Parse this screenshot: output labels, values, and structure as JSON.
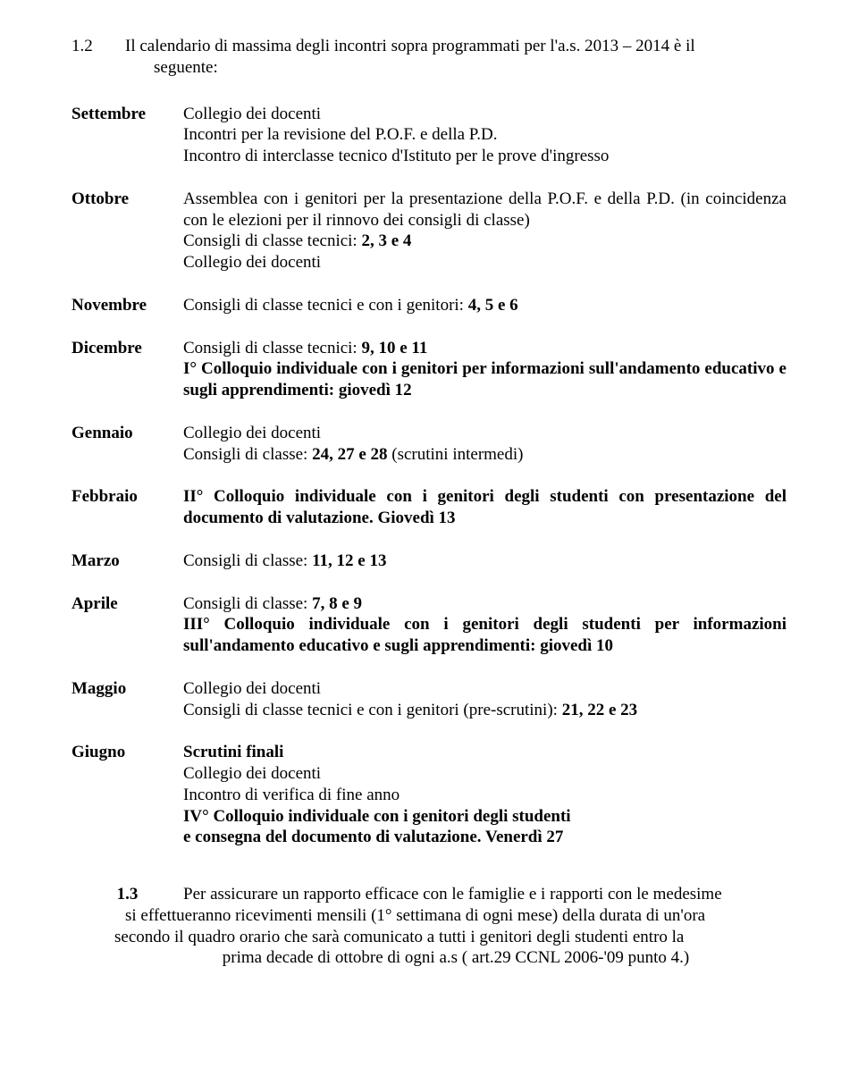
{
  "intro": {
    "num": "1.2",
    "line1": "Il calendario di massima degli incontri sopra programmati per l'a.s. 2013 – 2014 è il",
    "line2": "seguente:"
  },
  "months": {
    "settembre": {
      "label": "Settembre",
      "l1": "Collegio dei docenti",
      "l2": "Incontri per la revisione del P.O.F. e della P.D.",
      "l3": "Incontro di interclasse tecnico d'Istituto per le prove d'ingresso"
    },
    "ottobre": {
      "label": "Ottobre",
      "l1": "Assemblea con i genitori per la presentazione della P.O.F. e della P.D. (in coincidenza con le elezioni per il rinnovo dei consigli di classe)",
      "l2a": "Consigli di classe tecnici: ",
      "l2b": "2, 3 e 4",
      "l3": "Collegio dei docenti"
    },
    "novembre": {
      "label": "Novembre",
      "l1a": "Consigli di classe tecnici e con i genitori: ",
      "l1b": "4, 5 e 6"
    },
    "dicembre": {
      "label": "Dicembre",
      "l1a": "Consigli di classe tecnici: ",
      "l1b": "9, 10 e 11",
      "l2": "I° Colloquio individuale con i genitori per informazioni sull'andamento educativo e sugli apprendimenti: giovedì 12"
    },
    "gennaio": {
      "label": "Gennaio",
      "l1": "Collegio dei docenti",
      "l2a": "Consigli di classe: ",
      "l2b": "24, 27 e 28",
      "l2c": " (scrutini intermedi)"
    },
    "febbraio": {
      "label": "Febbraio",
      "l1": "II° Colloquio individuale con i genitori degli studenti con presentazione del documento di valutazione. Giovedì 13"
    },
    "marzo": {
      "label": "Marzo",
      "l1a": "Consigli di classe: ",
      "l1b": "11, 12 e 13"
    },
    "aprile": {
      "label": "Aprile",
      "l1a": "Consigli di classe: ",
      "l1b": "7, 8 e 9",
      "l2": "III° Colloquio individuale con i genitori degli studenti per informazioni sull'andamento educativo e sugli apprendimenti: giovedì 10"
    },
    "maggio": {
      "label": "Maggio",
      "l1": "Collegio dei docenti",
      "l2a": "Consigli di classe tecnici e con i genitori (pre-scrutini): ",
      "l2b": "21, 22 e 23"
    },
    "giugno": {
      "label": "Giugno",
      "l1": "Scrutini finali",
      "l2": "Collegio dei docenti",
      "l3": "Incontro di verifica di fine anno",
      "l4": "IV° Colloquio individuale con i genitori degli studenti",
      "l5": "e consegna del documento di valutazione. Venerdì 27"
    }
  },
  "footer": {
    "num": "1.3",
    "l1": "Per assicurare un rapporto efficace con le famiglie e i rapporti con le medesime",
    "l2": "si effettueranno ricevimenti mensili (1° settimana di ogni mese) della durata di un'ora",
    "l3": "secondo il quadro orario che sarà comunicato a tutti i genitori degli studenti entro la",
    "l4": "prima decade di ottobre di ogni a.s ( art.29 CCNL 2006-'09 punto 4.)"
  }
}
